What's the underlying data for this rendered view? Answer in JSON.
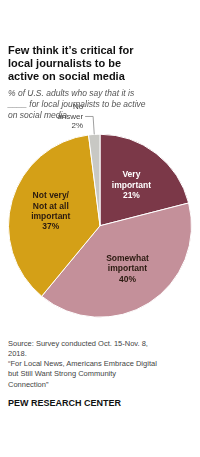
{
  "chart_data": {
    "type": "pie",
    "title": "Few think it’s critical for\nlocal journalists to be\nactive on social media",
    "subtitle": "% of U.S. adults who say that it is\n____ for local journalists to be active\non social media",
    "categories": [
      "Very\nimportant",
      "Somewhat\nimportant",
      "Not very/\nNot at all\nimportant",
      "No\nanswer"
    ],
    "values": [
      21,
      40,
      37,
      2
    ],
    "value_labels": [
      "21%",
      "40%",
      "37%",
      "2%"
    ],
    "data_labels": true,
    "colors": [
      "#7b3848",
      "#c4909a",
      "#d4a017",
      "#c8c8c4"
    ],
    "annotations": [
      "Source: Survey conducted Oct. 15-Nov. 8,\n2018.\n“For Local News, Americans Embrace Digital\nbut Still Want Strong Community\nConnection”",
      "PEW RESEARCH CENTER"
    ]
  }
}
